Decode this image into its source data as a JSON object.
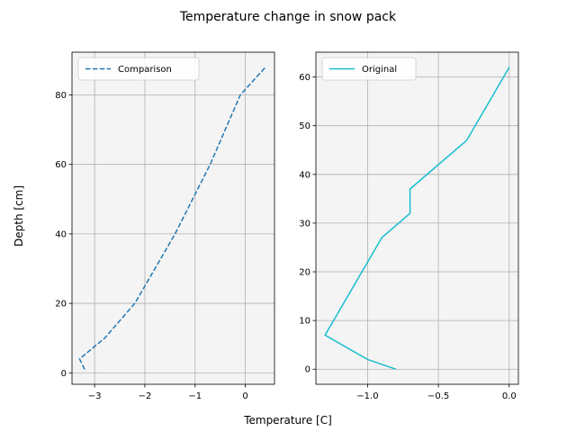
{
  "chart_data": {
    "title": "Temperature change in snow pack",
    "xlabel": "Temperature [C]",
    "ylabel": "Depth [cm]",
    "grid": true,
    "subplots": [
      {
        "type": "line",
        "legend_position": "top-left",
        "xlim": [
          -3.45,
          0.58
        ],
        "ylim": [
          -3.3,
          92.3
        ],
        "xticks": [
          -3,
          -2,
          -1,
          0
        ],
        "yticks": [
          0,
          20,
          40,
          60,
          80
        ],
        "series": [
          {
            "name": "Comparison",
            "color": "#1f77b4",
            "style": "dashed",
            "x": [
              -3.2,
              -3.3,
              -2.8,
              -2.2,
              -1.4,
              -0.7,
              -0.1,
              0.4
            ],
            "y": [
              1,
              4,
              10,
              20,
              40,
              60,
              80,
              88
            ]
          }
        ]
      },
      {
        "type": "line",
        "legend_position": "top-left",
        "xlim": [
          -1.365,
          0.065
        ],
        "ylim": [
          -3.1,
          65.1
        ],
        "xticks": [
          -1.0,
          -0.5,
          0.0
        ],
        "yticks": [
          0,
          10,
          20,
          30,
          40,
          50,
          60
        ],
        "series": [
          {
            "name": "Original",
            "color": "#17becf",
            "style": "solid",
            "x": [
              -0.8,
              -1.0,
              -1.3,
              -0.9,
              -0.7,
              -0.7,
              -0.3,
              0.0
            ],
            "y": [
              0,
              2,
              7,
              27,
              32,
              37,
              47,
              62
            ]
          }
        ]
      }
    ]
  }
}
